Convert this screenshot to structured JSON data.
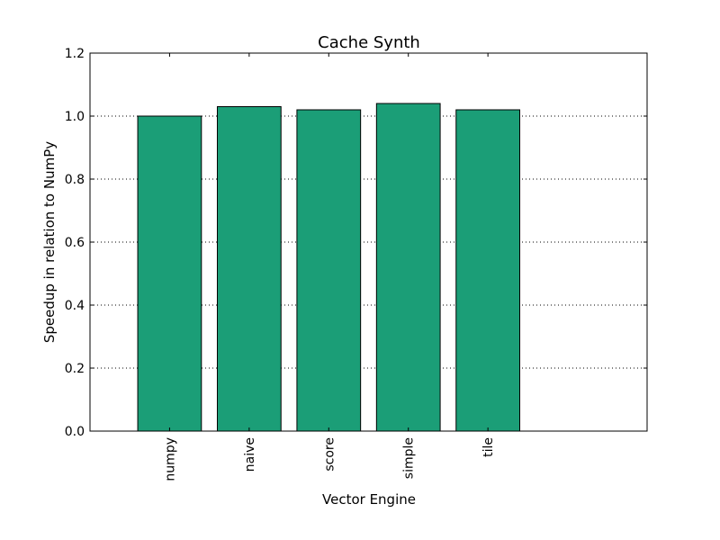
{
  "chart_data": {
    "type": "bar",
    "title": "Cache Synth",
    "xlabel": "Vector Engine",
    "ylabel": "Speedup in relation to NumPy",
    "categories": [
      "numpy",
      "naive",
      "score",
      "simple",
      "tile"
    ],
    "values": [
      1.0,
      1.03,
      1.02,
      1.04,
      1.02
    ],
    "ylim": [
      0,
      1.2
    ],
    "yticks": [
      "0.0",
      "0.2",
      "0.4",
      "0.6",
      "0.8",
      "1.0",
      "1.2"
    ],
    "grid": "horizontal dotted",
    "bar_color": "#1b9e77",
    "bar_edge_color": "#000000"
  }
}
